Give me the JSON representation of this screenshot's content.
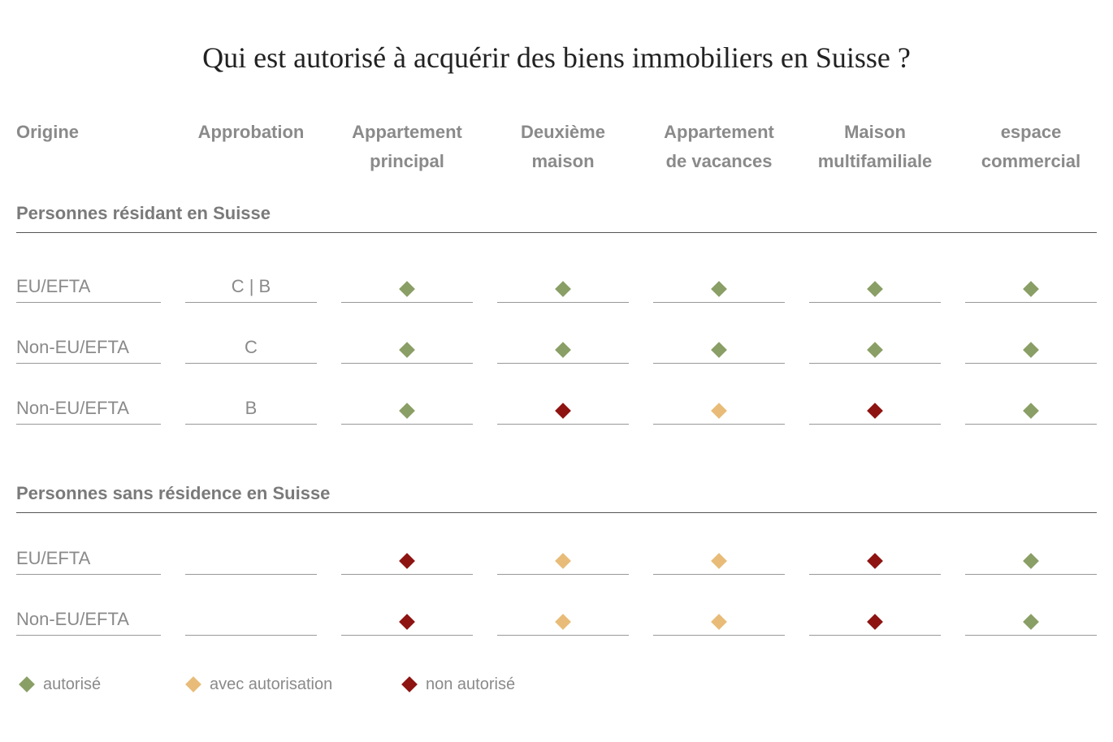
{
  "title": "Qui est autorisé à acquérir des biens immobiliers en Suisse ?",
  "headers": {
    "origin": "Origine",
    "approval": "Approbation",
    "columns": [
      [
        "Appartement",
        "principal"
      ],
      [
        "Deuxième",
        "maison"
      ],
      [
        "Appartement",
        "de vacances"
      ],
      [
        "Maison",
        "multifamiliale"
      ],
      [
        "espace",
        "commercial"
      ]
    ]
  },
  "colors": {
    "allowed": "#8a9f66",
    "with_authorization": "#e8bc78",
    "not_allowed": "#8e1412"
  },
  "sections": [
    {
      "title": "Personnes résidant en Suisse",
      "rows": [
        {
          "origin": "EU/EFTA",
          "approval": "C | B",
          "status": [
            "allowed",
            "allowed",
            "allowed",
            "allowed",
            "allowed"
          ]
        },
        {
          "origin": "Non-EU/EFTA",
          "approval": "C",
          "status": [
            "allowed",
            "allowed",
            "allowed",
            "allowed",
            "allowed"
          ]
        },
        {
          "origin": "Non-EU/EFTA",
          "approval": "B",
          "status": [
            "allowed",
            "not_allowed",
            "with_authorization",
            "not_allowed",
            "allowed"
          ]
        }
      ]
    },
    {
      "title": "Personnes sans résidence en Suisse",
      "rows": [
        {
          "origin": "EU/EFTA",
          "approval": "",
          "status": [
            "not_allowed",
            "with_authorization",
            "with_authorization",
            "not_allowed",
            "allowed"
          ]
        },
        {
          "origin": "Non-EU/EFTA",
          "approval": "",
          "status": [
            "not_allowed",
            "with_authorization",
            "with_authorization",
            "not_allowed",
            "allowed"
          ]
        }
      ]
    }
  ],
  "legend": [
    {
      "key": "allowed",
      "label": "autorisé"
    },
    {
      "key": "with_authorization",
      "label": "avec autorisation"
    },
    {
      "key": "not_allowed",
      "label": "non autorisé"
    }
  ]
}
